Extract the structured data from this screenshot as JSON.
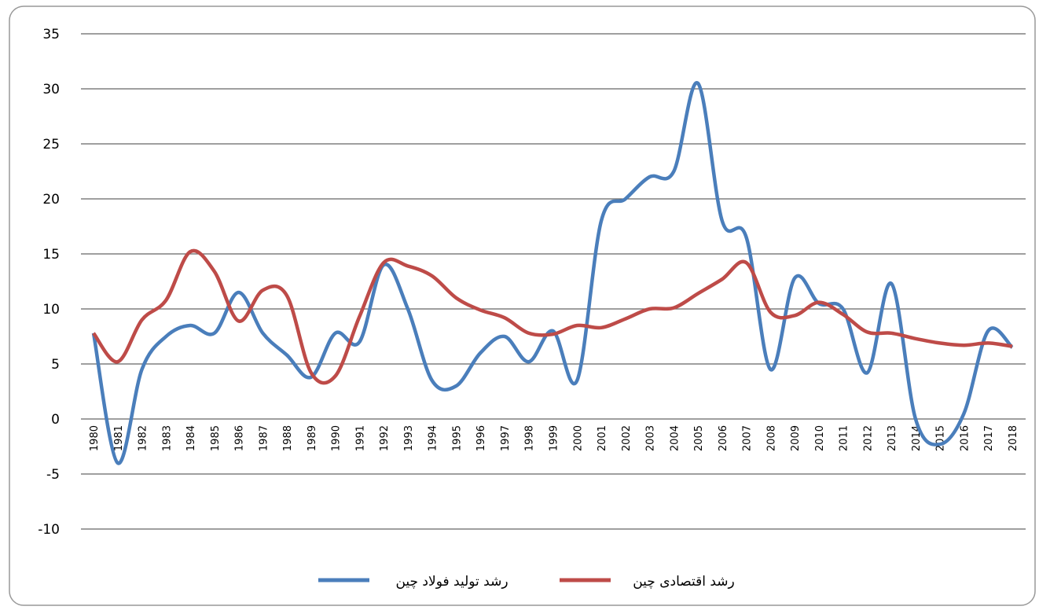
{
  "chart_data": {
    "type": "line",
    "categories": [
      "1980",
      "1981",
      "1982",
      "1983",
      "1984",
      "1985",
      "1986",
      "1987",
      "1988",
      "1989",
      "1990",
      "1991",
      "1992",
      "1993",
      "1994",
      "1995",
      "1996",
      "1997",
      "1998",
      "1999",
      "2000",
      "2001",
      "2002",
      "2003",
      "2004",
      "2005",
      "2006",
      "2007",
      "2008",
      "2009",
      "2010",
      "2011",
      "2012",
      "2013",
      "2014",
      "2015",
      "2016",
      "2017",
      "2018"
    ],
    "series": [
      {
        "name": "رشد تولید فولاد چین",
        "color": "#4a7ebb",
        "values": [
          7.8,
          -4,
          4.5,
          7.5,
          8.5,
          7.8,
          11.5,
          7.8,
          5.8,
          3.8,
          7.8,
          7,
          14,
          10,
          3.5,
          3,
          6,
          7.5,
          5.2,
          8,
          3.5,
          18,
          20,
          22,
          22.5,
          30.5,
          18,
          16.5,
          4.5,
          12.8,
          10.5,
          10,
          4.2,
          12.3,
          0,
          -2.3,
          0.5,
          8,
          6.5
        ]
      },
      {
        "name": "رشد اقتصادی چین",
        "color": "#be4b48",
        "values": [
          7.8,
          5.2,
          9,
          10.8,
          15.2,
          13.4,
          8.9,
          11.7,
          11.2,
          4.2,
          3.9,
          9.3,
          14.2,
          13.9,
          13,
          11,
          9.9,
          9.2,
          7.8,
          7.7,
          8.5,
          8.3,
          9.1,
          10,
          10.1,
          11.4,
          12.7,
          14.2,
          9.7,
          9.4,
          10.6,
          9.5,
          7.9,
          7.8,
          7.3,
          6.9,
          6.7,
          6.9,
          6.6
        ]
      }
    ],
    "ylim": [
      -10,
      35
    ],
    "yticks": [
      -10,
      -5,
      0,
      5,
      10,
      15,
      20,
      25,
      30,
      35
    ],
    "grid": true
  }
}
